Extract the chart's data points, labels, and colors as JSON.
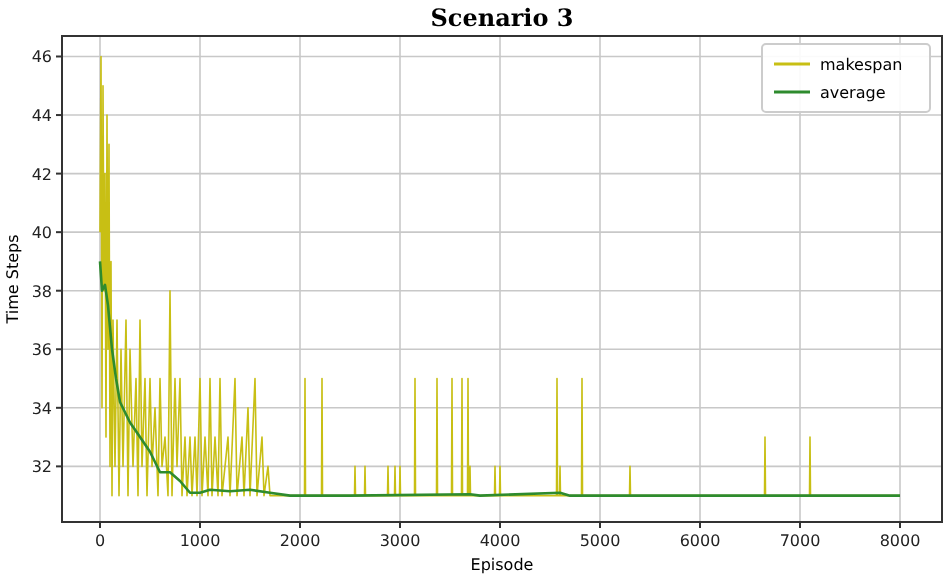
{
  "chart_data": {
    "type": "line",
    "title": "Scenario 3",
    "xlabel": "Episode",
    "ylabel": "Time Steps",
    "xlim": [
      -380,
      8420
    ],
    "ylim": [
      30.1,
      46.7
    ],
    "xticks": [
      0,
      1000,
      2000,
      3000,
      4000,
      5000,
      6000,
      7000,
      8000
    ],
    "yticks": [
      32,
      34,
      36,
      38,
      40,
      42,
      44,
      46
    ],
    "grid": true,
    "legend": "top right",
    "line_style": "solid",
    "marker": "none",
    "series": [
      {
        "name": "makespan",
        "color": "#c8bf14",
        "x": [
          0,
          10,
          20,
          30,
          40,
          50,
          60,
          70,
          80,
          90,
          100,
          110,
          120,
          130,
          150,
          170,
          190,
          210,
          230,
          260,
          280,
          300,
          330,
          360,
          380,
          400,
          420,
          450,
          470,
          500,
          520,
          550,
          580,
          600,
          620,
          650,
          680,
          700,
          720,
          750,
          770,
          800,
          820,
          850,
          870,
          900,
          920,
          950,
          970,
          1000,
          1020,
          1050,
          1080,
          1100,
          1120,
          1150,
          1180,
          1200,
          1220,
          1280,
          1300,
          1350,
          1370,
          1420,
          1440,
          1480,
          1500,
          1550,
          1570,
          1620,
          1640,
          1680,
          1700,
          1800,
          2045,
          2050,
          2055,
          2215,
          2220,
          2225,
          2545,
          2550,
          2555,
          2645,
          2650,
          2655,
          2875,
          2880,
          2885,
          2945,
          2950,
          2955,
          2995,
          3000,
          3005,
          3145,
          3150,
          3155,
          3365,
          3370,
          3375,
          3515,
          3520,
          3525,
          3615,
          3620,
          3625,
          3675,
          3680,
          3685,
          3695,
          3700,
          3705,
          3945,
          3950,
          3955,
          3995,
          4000,
          4005,
          4565,
          4570,
          4575,
          4595,
          4600,
          4605,
          4815,
          4820,
          4825,
          5295,
          5300,
          5305,
          6645,
          6650,
          6655,
          7095,
          7100,
          7105,
          8000
        ],
        "values": [
          40,
          46,
          34,
          45,
          38,
          42,
          33,
          44,
          36,
          43,
          32,
          39,
          31,
          37,
          32,
          37,
          31,
          36,
          32,
          37,
          31,
          36,
          32,
          35,
          31,
          37,
          32,
          35,
          31,
          35,
          32,
          34,
          31,
          35,
          32,
          33,
          31,
          38,
          31,
          35,
          32,
          35,
          31,
          33,
          31,
          33,
          31,
          33,
          31,
          35,
          31,
          33,
          31,
          35,
          31,
          33,
          31,
          35,
          31,
          33,
          31,
          35,
          31,
          33,
          31,
          34,
          31,
          35,
          31,
          33,
          31,
          32,
          31,
          31,
          31,
          35,
          31,
          31,
          35,
          31,
          31,
          32,
          31,
          31,
          32,
          31,
          31,
          32,
          31,
          31,
          32,
          31,
          31,
          32,
          31,
          31,
          35,
          31,
          31,
          35,
          31,
          31,
          35,
          31,
          31,
          35,
          31,
          31,
          35,
          31,
          31,
          32,
          31,
          31,
          32,
          31,
          31,
          32,
          31,
          31,
          35,
          31,
          31,
          32,
          31,
          31,
          35,
          31,
          31,
          32,
          31,
          31,
          33,
          31,
          31,
          33,
          31,
          31
        ]
      },
      {
        "name": "average",
        "color": "#2e8b2e",
        "x": [
          0,
          20,
          50,
          80,
          120,
          160,
          200,
          300,
          400,
          500,
          600,
          700,
          800,
          900,
          1000,
          1100,
          1300,
          1500,
          1700,
          1900,
          2500,
          3700,
          3800,
          4600,
          4700,
          8000
        ],
        "values": [
          39,
          38,
          38.2,
          37.5,
          36,
          35,
          34.2,
          33.5,
          33,
          32.5,
          31.8,
          31.8,
          31.5,
          31.1,
          31.1,
          31.2,
          31.15,
          31.2,
          31.1,
          31,
          31,
          31.05,
          31,
          31.1,
          31,
          31
        ]
      }
    ]
  }
}
